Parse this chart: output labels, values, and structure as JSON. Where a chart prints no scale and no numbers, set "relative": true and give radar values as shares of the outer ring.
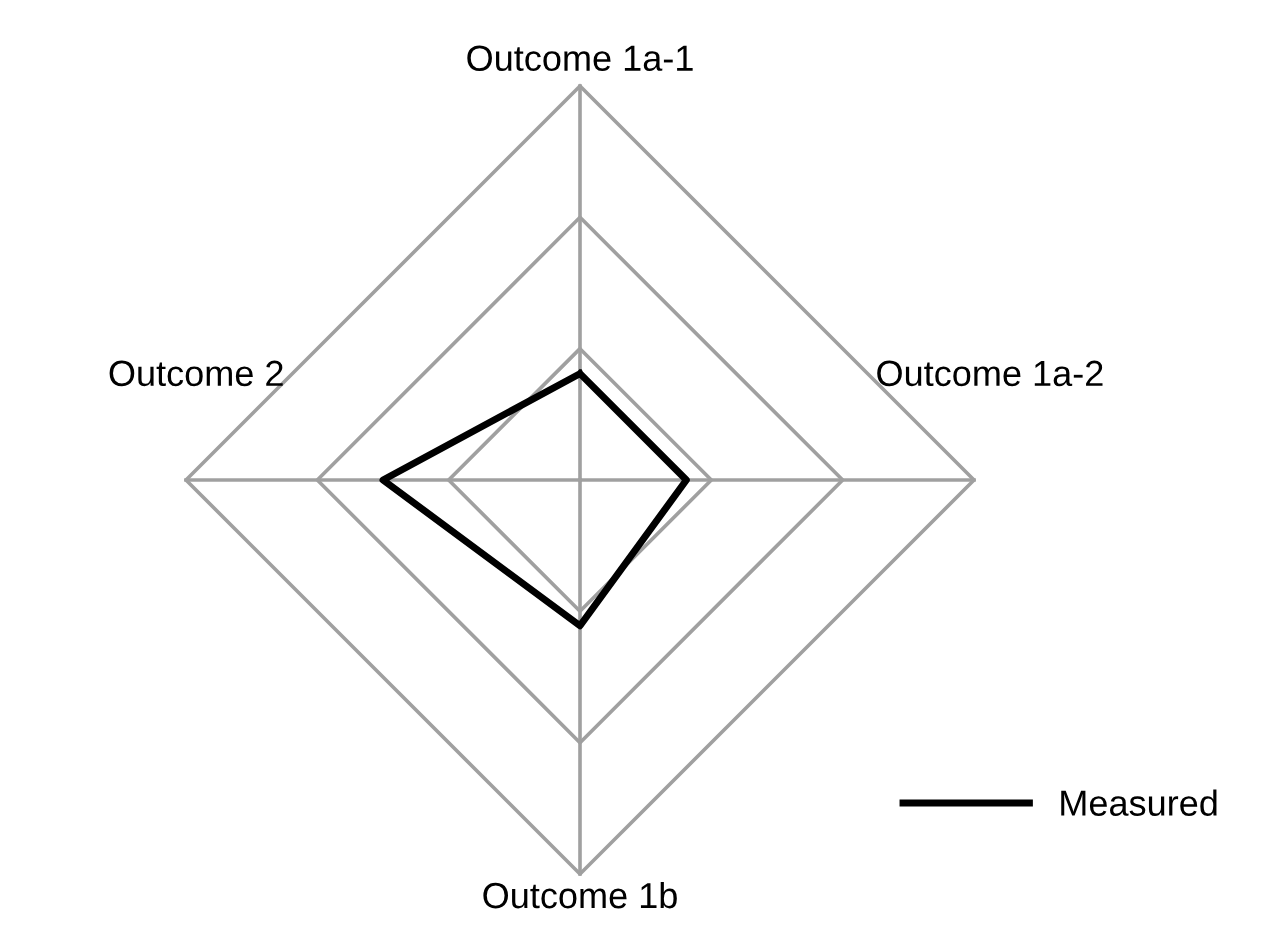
{
  "chart_data": {
    "type": "radar",
    "relative": true,
    "categories": [
      "Outcome 1a-1",
      "Outcome 1a-2",
      "Outcome 1b",
      "Outcome 2"
    ],
    "series": [
      {
        "name": "Measured",
        "color": "#000000",
        "values": [
          0.27,
          0.27,
          0.37,
          0.5
        ]
      }
    ],
    "grid": true,
    "legend": "bottom right"
  }
}
